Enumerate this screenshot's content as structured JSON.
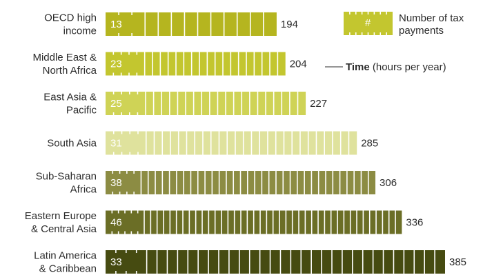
{
  "chart_data": {
    "type": "bar",
    "orientation": "horizontal",
    "categories": [
      [
        "OECD high",
        "income"
      ],
      [
        "Middle East &",
        "North Africa"
      ],
      [
        "East Asia &",
        "Pacific"
      ],
      [
        "South Asia"
      ],
      [
        "Sub-Saharan",
        "Africa"
      ],
      [
        "Eastern Europe",
        "& Central Asia"
      ],
      [
        "Latin America",
        "& Caribbean"
      ]
    ],
    "series": [
      {
        "name": "Time (hours per year)",
        "values": [
          194,
          204,
          227,
          285,
          306,
          336,
          385
        ]
      },
      {
        "name": "Number of tax payments",
        "values": [
          13,
          23,
          25,
          31,
          38,
          46,
          33
        ]
      }
    ],
    "colors": [
      "#b5b51f",
      "#c3c62f",
      "#cfd356",
      "#dfe29d",
      "#8c8c43",
      "#6b6e26",
      "#464b11"
    ],
    "legend": {
      "payments_symbol": "#",
      "payments_label": [
        "Number of tax",
        "payments"
      ],
      "time_bold": "Time",
      "time_rest": " (hours per year)",
      "position": "top-right"
    },
    "xlim": [
      0,
      385
    ]
  }
}
